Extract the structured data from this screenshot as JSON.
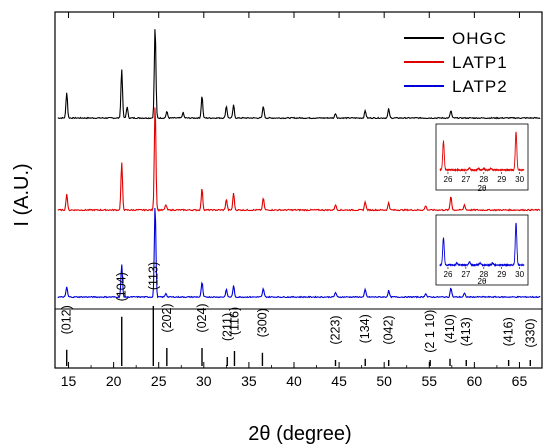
{
  "chart_data": {
    "type": "line",
    "xlabel": "2θ (degree)",
    "ylabel": "I (A.U.)",
    "xlim": [
      13.5,
      67.5
    ],
    "x_ticks": [
      "15",
      "20",
      "25",
      "30",
      "35",
      "40",
      "45",
      "50",
      "55",
      "60",
      "65"
    ],
    "legend": {
      "placement": "top-right",
      "entries": [
        {
          "name": "OHGC",
          "color": "#000000"
        },
        {
          "name": "LATP1",
          "color": "#e00000"
        },
        {
          "name": "LATP2",
          "color": "#0000d8"
        }
      ]
    },
    "series": [
      {
        "name": "OHGC",
        "color": "#000000",
        "peaks": [
          {
            "x": 14.8,
            "rel": 0.28
          },
          {
            "x": 20.9,
            "rel": 0.53
          },
          {
            "x": 21.5,
            "rel": 0.12
          },
          {
            "x": 24.6,
            "rel": 1.0
          },
          {
            "x": 25.9,
            "rel": 0.07
          },
          {
            "x": 27.7,
            "rel": 0.06
          },
          {
            "x": 29.8,
            "rel": 0.24
          },
          {
            "x": 32.5,
            "rel": 0.13
          },
          {
            "x": 33.3,
            "rel": 0.14
          },
          {
            "x": 36.6,
            "rel": 0.13
          },
          {
            "x": 44.6,
            "rel": 0.05
          },
          {
            "x": 47.9,
            "rel": 0.08
          },
          {
            "x": 50.5,
            "rel": 0.1
          },
          {
            "x": 57.4,
            "rel": 0.08
          }
        ]
      },
      {
        "name": "LATP1",
        "color": "#e00000",
        "peaks": [
          {
            "x": 14.8,
            "rel": 0.15
          },
          {
            "x": 20.9,
            "rel": 0.44
          },
          {
            "x": 24.6,
            "rel": 1.0
          },
          {
            "x": 25.8,
            "rel": 0.05
          },
          {
            "x": 29.8,
            "rel": 0.2
          },
          {
            "x": 32.5,
            "rel": 0.1
          },
          {
            "x": 33.3,
            "rel": 0.16
          },
          {
            "x": 36.6,
            "rel": 0.11
          },
          {
            "x": 44.6,
            "rel": 0.05
          },
          {
            "x": 47.9,
            "rel": 0.08
          },
          {
            "x": 50.5,
            "rel": 0.07
          },
          {
            "x": 54.6,
            "rel": 0.04
          },
          {
            "x": 57.4,
            "rel": 0.13
          },
          {
            "x": 58.9,
            "rel": 0.05
          }
        ]
      },
      {
        "name": "LATP2",
        "color": "#0000d8",
        "peaks": [
          {
            "x": 14.8,
            "rel": 0.11
          },
          {
            "x": 20.9,
            "rel": 0.35
          },
          {
            "x": 24.6,
            "rel": 1.0
          },
          {
            "x": 25.8,
            "rel": 0.04
          },
          {
            "x": 29.8,
            "rel": 0.16
          },
          {
            "x": 32.5,
            "rel": 0.08
          },
          {
            "x": 33.3,
            "rel": 0.12
          },
          {
            "x": 36.6,
            "rel": 0.09
          },
          {
            "x": 44.6,
            "rel": 0.05
          },
          {
            "x": 47.9,
            "rel": 0.08
          },
          {
            "x": 50.5,
            "rel": 0.07
          },
          {
            "x": 54.6,
            "rel": 0.04
          },
          {
            "x": 57.4,
            "rel": 0.1
          },
          {
            "x": 58.9,
            "rel": 0.04
          }
        ]
      }
    ],
    "reference_lines": [
      {
        "label": "(012)",
        "x": 14.8,
        "rel": 0.27
      },
      {
        "label": "(104)",
        "x": 20.9,
        "rel": 0.82
      },
      {
        "label": "(113)",
        "x": 24.4,
        "rel": 1.0
      },
      {
        "label": "(202)",
        "x": 25.9,
        "rel": 0.3
      },
      {
        "label": "(024)",
        "x": 29.8,
        "rel": 0.3
      },
      {
        "label": "(211)",
        "x": 32.6,
        "rel": 0.15
      },
      {
        "label": "(116)",
        "x": 33.4,
        "rel": 0.25
      },
      {
        "label": "(300)",
        "x": 36.5,
        "rel": 0.22
      },
      {
        "label": "(223)",
        "x": 44.6,
        "rel": 0.1
      },
      {
        "label": "(134)",
        "x": 47.9,
        "rel": 0.12
      },
      {
        "label": "(042)",
        "x": 50.5,
        "rel": 0.1
      },
      {
        "label": "(2 1 10)",
        "x": 55.1,
        "rel": 0.08
      },
      {
        "label": "(410)",
        "x": 57.3,
        "rel": 0.12
      },
      {
        "label": "(413)",
        "x": 59.1,
        "rel": 0.07
      },
      {
        "label": "(416)",
        "x": 63.8,
        "rel": 0.07
      },
      {
        "label": "(330)",
        "x": 66.2,
        "rel": 0.05
      }
    ],
    "insets": [
      {
        "series": "LATP1",
        "color": "#e00000",
        "xlabel": "2θ",
        "xlim": [
          25.5,
          30.3
        ],
        "x_ticks": [
          "26",
          "27",
          "28",
          "29",
          "30"
        ],
        "peaks": [
          {
            "x": 25.75,
            "rel": 0.75
          },
          {
            "x": 27.2,
            "rel": 0.06
          },
          {
            "x": 27.7,
            "rel": 0.05
          },
          {
            "x": 28.0,
            "rel": 0.04
          },
          {
            "x": 28.4,
            "rel": 0.04
          },
          {
            "x": 29.8,
            "rel": 1.0
          }
        ]
      },
      {
        "series": "LATP2",
        "color": "#0000d8",
        "xlabel": "2θ",
        "xlim": [
          25.5,
          30.3
        ],
        "x_ticks": [
          "26",
          "27",
          "28",
          "29",
          "30"
        ],
        "peaks": [
          {
            "x": 25.75,
            "rel": 0.65
          },
          {
            "x": 26.5,
            "rel": 0.05
          },
          {
            "x": 27.2,
            "rel": 0.08
          },
          {
            "x": 27.8,
            "rel": 0.05
          },
          {
            "x": 28.5,
            "rel": 0.05
          },
          {
            "x": 29.8,
            "rel": 1.0
          }
        ]
      }
    ]
  }
}
